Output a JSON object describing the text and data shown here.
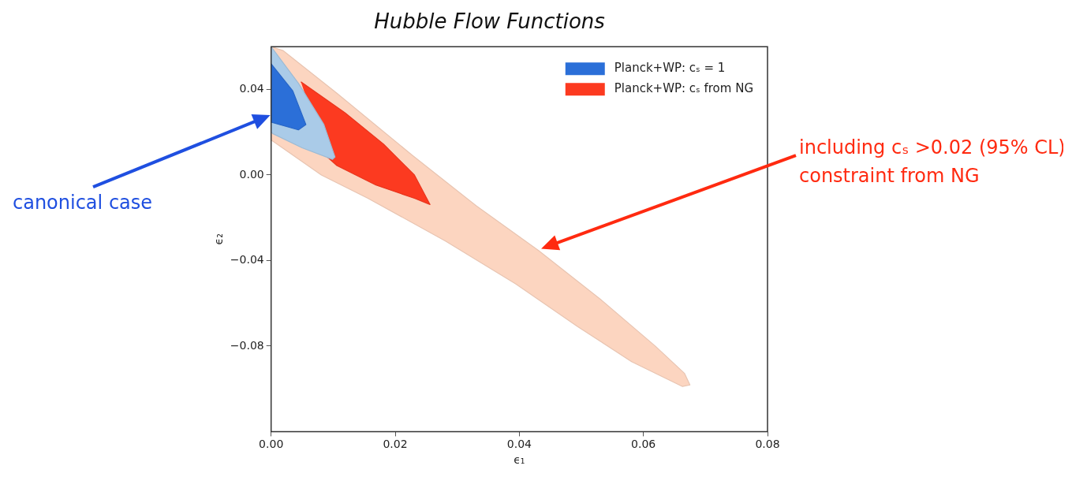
{
  "chart_data": {
    "type": "area",
    "title": "Hubble Flow Functions",
    "xlabel": "ϵ₁",
    "ylabel": "ϵ₂",
    "xlim": [
      0,
      0.08
    ],
    "xticks": [
      {
        "value": 0,
        "label": "0.00"
      },
      {
        "value": 0.02,
        "label": "0.02"
      },
      {
        "value": 0.04,
        "label": "0.04"
      },
      {
        "value": 0.06,
        "label": "0.06"
      },
      {
        "value": 0.08,
        "label": "0.08"
      }
    ],
    "ylim": [
      -0.12,
      0.06
    ],
    "yticks": [
      {
        "value": -0.08,
        "label": "−0.08"
      },
      {
        "value": -0.04,
        "label": "−0.04"
      },
      {
        "value": 0,
        "label": "0.00"
      },
      {
        "value": 0.04,
        "label": "0.04"
      }
    ],
    "grid": false,
    "legend": "top right",
    "marker": "none",
    "series": [
      {
        "color": "#fcd5c0",
        "x": [
          0,
          0.0019,
          0.0106,
          0.0228,
          0.0331,
          0.0431,
          0.0531,
          0.0619,
          0.0666,
          0.0675,
          0.0663,
          0.0581,
          0.0494,
          0.0394,
          0.0281,
          0.0156,
          0.0081,
          0
        ],
        "values": [
          0.06,
          0.0582,
          0.0382,
          0.0091,
          -0.0145,
          -0.0353,
          -0.0582,
          -0.08,
          -0.0927,
          -0.0982,
          -0.0989,
          -0.0873,
          -0.0709,
          -0.0509,
          -0.0309,
          -0.0109,
          0,
          0.0164
        ]
      },
      {
        "name": "Planck+WP: cₛ from NG",
        "color": "#fc3a20",
        "x": [
          0.0048,
          0.0119,
          0.0181,
          0.0231,
          0.0256,
          0.0231,
          0.0169,
          0.0106,
          0.0088
        ],
        "values": [
          0.0436,
          0.0291,
          0.0145,
          0,
          -0.0138,
          -0.0109,
          -0.0047,
          0.0044,
          0.0091
        ]
      },
      {
        "color": "#aacbe8",
        "x": [
          0,
          0.0044,
          0.0085,
          0.0103,
          0.0099,
          0.005,
          0.0003,
          0
        ],
        "values": [
          0.06,
          0.0429,
          0.0236,
          0.0084,
          0.0073,
          0.0127,
          0.0193,
          0.02
        ]
      },
      {
        "name": "Planck+WP: cₛ = 1",
        "color": "#2b6fd8",
        "x": [
          0,
          0.0035,
          0.0056,
          0.0044,
          0
        ],
        "values": [
          0.052,
          0.0393,
          0.0236,
          0.0211,
          0.0247
        ]
      }
    ],
    "annotations": [
      "canonical case",
      "including cₛ >0.02 (95% CL) constraint from NG"
    ]
  }
}
